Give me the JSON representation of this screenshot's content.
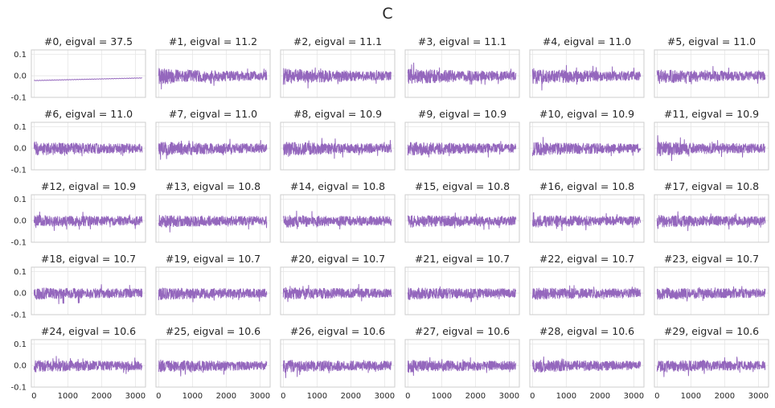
{
  "chart_data": {
    "type": "line",
    "title": "C",
    "layout": {
      "rows": 5,
      "cols": 6,
      "sharex": true,
      "sharey": true
    },
    "xlim": [
      -80,
      3300
    ],
    "ylim": [
      -0.1,
      0.12
    ],
    "xticks": [
      0,
      1000,
      2000,
      3000
    ],
    "xtick_labels": [
      "0",
      "1000",
      "2000",
      "3000"
    ],
    "yticks": [
      -0.1,
      0.0,
      0.1
    ],
    "ytick_labels": [
      "-0.1",
      "0.0",
      "0.1"
    ],
    "grid": true,
    "line_color": "#9467bd",
    "n_samples": 3200,
    "subplots": [
      {
        "title": "#0, eigval = 37.5",
        "kind": "trend",
        "start": -0.022,
        "end": -0.01
      },
      {
        "title": "#1, eigval = 11.2",
        "kind": "noise",
        "amp_start": 0.04,
        "amp_end": 0.02
      },
      {
        "title": "#2, eigval = 11.1",
        "kind": "noise",
        "amp_start": 0.04,
        "amp_end": 0.02
      },
      {
        "title": "#3, eigval = 11.1",
        "kind": "noise",
        "amp_start": 0.04,
        "amp_end": 0.02
      },
      {
        "title": "#4, eigval = 11.0",
        "kind": "noise",
        "amp_start": 0.04,
        "amp_end": 0.02
      },
      {
        "title": "#5, eigval = 11.0",
        "kind": "noise",
        "amp_start": 0.035,
        "amp_end": 0.02
      },
      {
        "title": "#6, eigval = 11.0",
        "kind": "noise",
        "amp_start": 0.035,
        "amp_end": 0.02
      },
      {
        "title": "#7, eigval = 11.0",
        "kind": "noise",
        "amp_start": 0.035,
        "amp_end": 0.02
      },
      {
        "title": "#8, eigval = 10.9",
        "kind": "noise",
        "amp_start": 0.035,
        "amp_end": 0.02
      },
      {
        "title": "#9, eigval = 10.9",
        "kind": "noise",
        "amp_start": 0.035,
        "amp_end": 0.02
      },
      {
        "title": "#10, eigval = 10.9",
        "kind": "noise",
        "amp_start": 0.035,
        "amp_end": 0.02
      },
      {
        "title": "#11, eigval = 10.9",
        "kind": "noise",
        "amp_start": 0.035,
        "amp_end": 0.02
      },
      {
        "title": "#12, eigval = 10.9",
        "kind": "noise",
        "amp_start": 0.03,
        "amp_end": 0.02
      },
      {
        "title": "#13, eigval = 10.8",
        "kind": "noise",
        "amp_start": 0.03,
        "amp_end": 0.02
      },
      {
        "title": "#14, eigval = 10.8",
        "kind": "noise",
        "amp_start": 0.03,
        "amp_end": 0.02
      },
      {
        "title": "#15, eigval = 10.8",
        "kind": "noise",
        "amp_start": 0.03,
        "amp_end": 0.02
      },
      {
        "title": "#16, eigval = 10.8",
        "kind": "noise",
        "amp_start": 0.03,
        "amp_end": 0.02
      },
      {
        "title": "#17, eigval = 10.8",
        "kind": "noise",
        "amp_start": 0.03,
        "amp_end": 0.02
      },
      {
        "title": "#18, eigval = 10.7",
        "kind": "noise",
        "amp_start": 0.03,
        "amp_end": 0.02
      },
      {
        "title": "#19, eigval = 10.7",
        "kind": "noise",
        "amp_start": 0.03,
        "amp_end": 0.02
      },
      {
        "title": "#20, eigval = 10.7",
        "kind": "noise",
        "amp_start": 0.03,
        "amp_end": 0.02
      },
      {
        "title": "#21, eigval = 10.7",
        "kind": "noise",
        "amp_start": 0.03,
        "amp_end": 0.02
      },
      {
        "title": "#22, eigval = 10.7",
        "kind": "noise",
        "amp_start": 0.03,
        "amp_end": 0.02
      },
      {
        "title": "#23, eigval = 10.7",
        "kind": "noise",
        "amp_start": 0.03,
        "amp_end": 0.02
      },
      {
        "title": "#24, eigval = 10.6",
        "kind": "noise",
        "amp_start": 0.03,
        "amp_end": 0.02
      },
      {
        "title": "#25, eigval = 10.6",
        "kind": "noise",
        "amp_start": 0.03,
        "amp_end": 0.02
      },
      {
        "title": "#26, eigval = 10.6",
        "kind": "noise",
        "amp_start": 0.03,
        "amp_end": 0.02
      },
      {
        "title": "#27, eigval = 10.6",
        "kind": "noise",
        "amp_start": 0.03,
        "amp_end": 0.02
      },
      {
        "title": "#28, eigval = 10.6",
        "kind": "noise",
        "amp_start": 0.03,
        "amp_end": 0.02
      },
      {
        "title": "#29, eigval = 10.6",
        "kind": "noise",
        "amp_start": 0.03,
        "amp_end": 0.02
      }
    ]
  }
}
